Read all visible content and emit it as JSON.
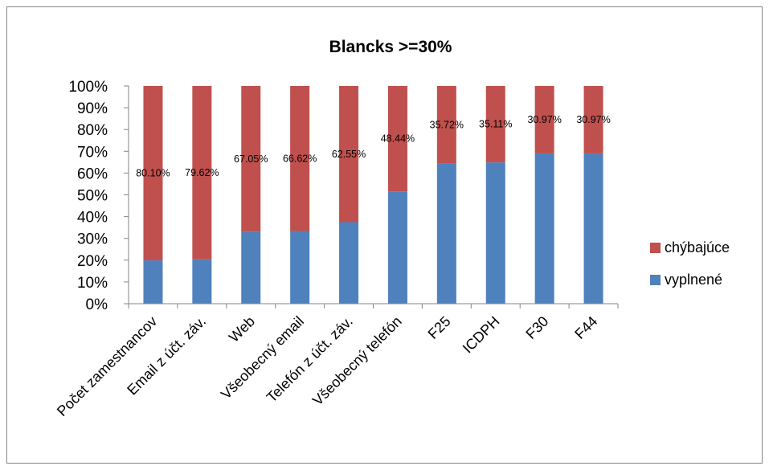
{
  "chart_data": {
    "type": "bar",
    "stacked": true,
    "percent_stacked": true,
    "title": "Blancks >=30%",
    "xlabel": "",
    "ylabel": "",
    "ylim": [
      0,
      100
    ],
    "y_ticks": [
      "0%",
      "10%",
      "20%",
      "30%",
      "40%",
      "50%",
      "60%",
      "70%",
      "80%",
      "90%",
      "100%"
    ],
    "grid": false,
    "legend_position": "right",
    "categories": [
      "Počet zamestnancov",
      "Email z účt. záv.",
      "Web",
      "Všeobecný email",
      "Telefón z účt. záv.",
      "Všeobecný telefón",
      "F25",
      "ICDPH",
      "F30",
      "F44"
    ],
    "series": [
      {
        "name": "vyplnené",
        "color": "#4f81bd",
        "values": [
          19.9,
          20.38,
          32.95,
          33.38,
          37.45,
          51.56,
          64.28,
          64.89,
          69.03,
          69.03
        ]
      },
      {
        "name": "chýbajúce",
        "color": "#c0504d",
        "values": [
          80.1,
          79.62,
          67.05,
          66.62,
          62.55,
          48.44,
          35.72,
          35.11,
          30.97,
          30.97
        ],
        "data_labels": [
          "80.10%",
          "79.62%",
          "67.05%",
          "66.62%",
          "62.55%",
          "48.44%",
          "35.72%",
          "35.11%",
          "30.97%",
          "30.97%"
        ]
      }
    ],
    "legend": [
      "chýbajúce",
      "vyplnené"
    ]
  }
}
